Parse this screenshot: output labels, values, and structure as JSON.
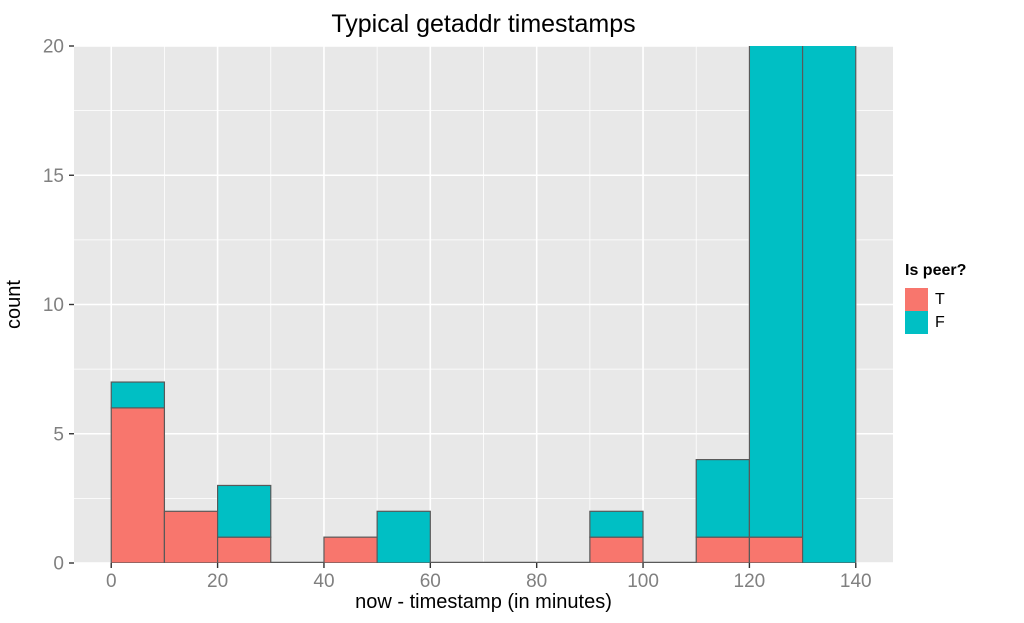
{
  "figure": {
    "title": "Typical getaddr timestamps",
    "xlabel": "now - timestamp (in minutes)",
    "ylabel": "count"
  },
  "legend": {
    "title": "Is peer?",
    "entries": [
      {
        "label": "T",
        "color": "#F8766D"
      },
      {
        "label": "F",
        "color": "#00BFC4"
      }
    ]
  },
  "chart_data": {
    "type": "bar",
    "subtype": "stacked-histogram",
    "title": "Typical getaddr timestamps",
    "xlabel": "now - timestamp (in minutes)",
    "ylabel": "count",
    "x_ticks": [
      0,
      20,
      40,
      60,
      80,
      100,
      120,
      140
    ],
    "y_ticks": [
      0,
      5,
      10,
      15,
      20
    ],
    "x_minor": [
      10,
      30,
      50,
      70,
      90,
      110,
      130
    ],
    "y_minor": [
      2.5,
      7.5,
      12.5,
      17.5
    ],
    "xlim": [
      -7,
      147
    ],
    "ylim": [
      0,
      20
    ],
    "bin_width": 10,
    "grid": "white major and minor gridlines on gray panel",
    "legend_position": "right",
    "stack_order": [
      "T",
      "F"
    ],
    "series_colors": {
      "T": "#F8766D",
      "F": "#00BFC4"
    },
    "bins": [
      {
        "start": 0,
        "end": 10,
        "T": 6,
        "F": 1
      },
      {
        "start": 10,
        "end": 20,
        "T": 2,
        "F": 0
      },
      {
        "start": 20,
        "end": 30,
        "T": 1,
        "F": 2
      },
      {
        "start": 30,
        "end": 40,
        "T": 0,
        "F": 0
      },
      {
        "start": 40,
        "end": 50,
        "T": 1,
        "F": 0
      },
      {
        "start": 50,
        "end": 60,
        "T": 0,
        "F": 2
      },
      {
        "start": 60,
        "end": 70,
        "T": 0,
        "F": 0
      },
      {
        "start": 70,
        "end": 80,
        "T": 0,
        "F": 0
      },
      {
        "start": 80,
        "end": 90,
        "T": 0,
        "F": 0
      },
      {
        "start": 90,
        "end": 100,
        "T": 1,
        "F": 1
      },
      {
        "start": 100,
        "end": 110,
        "T": 0,
        "F": 0
      },
      {
        "start": 110,
        "end": 120,
        "T": 1,
        "F": 3
      },
      {
        "start": 120,
        "end": 130,
        "T": 1,
        "F": 19,
        "clipped_at_top": true
      },
      {
        "start": 130,
        "end": 140,
        "T": 0,
        "F": 20,
        "clipped_at_top": true
      }
    ]
  },
  "style": {
    "panel_bg": "#E8E8E8",
    "grid_color": "#FFFFFF",
    "bar_border": "#595959",
    "tick_mark_color": "#333333",
    "tick_label_color": "#808080",
    "text_color": "#000000",
    "background": "#FFFFFF"
  }
}
